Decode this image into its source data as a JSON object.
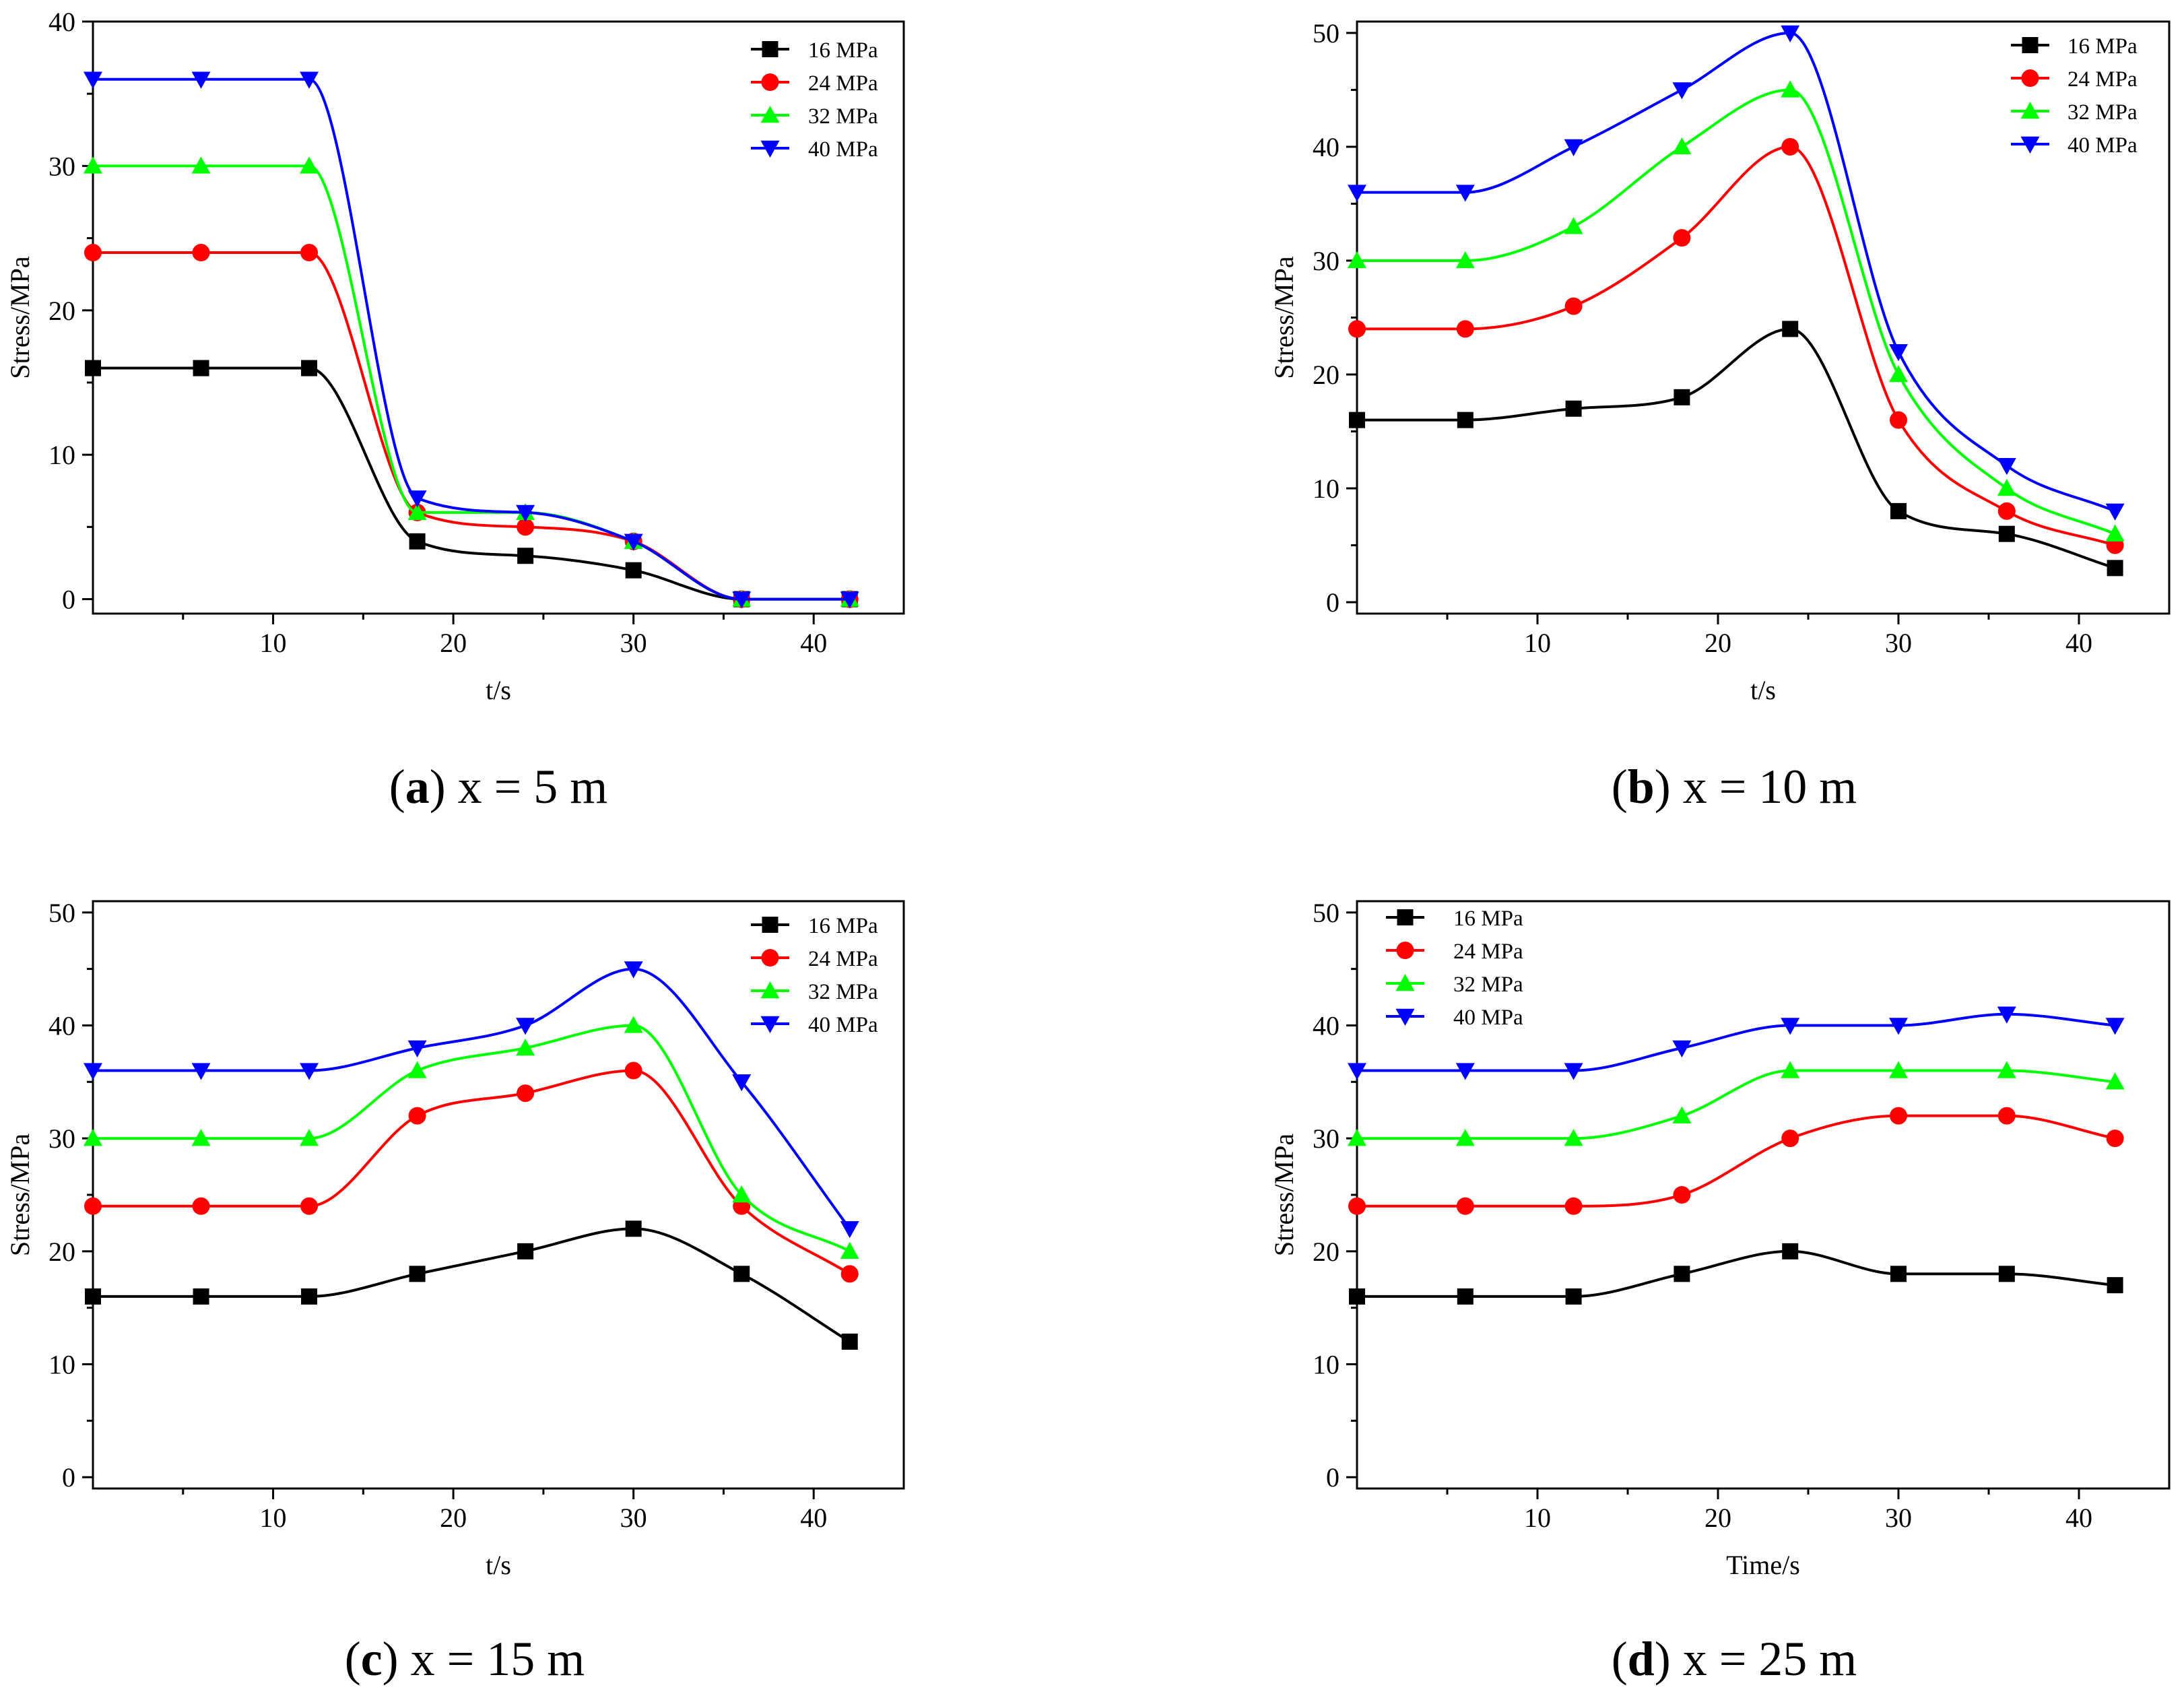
{
  "chart_data": [
    {
      "type": "line",
      "panel_letter": "a",
      "panel_condition": "x = 5 m",
      "xlabel": "t/s",
      "ylabel": "Stress/MPa",
      "xlim": [
        0,
        45
      ],
      "ylim": [
        -1,
        40
      ],
      "xticks": [
        10,
        20,
        30,
        40
      ],
      "yticks": [
        0,
        10,
        20,
        30,
        40
      ],
      "legend_position": "top-right",
      "x": [
        0,
        6,
        12,
        18,
        24,
        30,
        36,
        42
      ],
      "series": [
        {
          "name": "16 MPa",
          "color": "#000000",
          "marker": "square",
          "values": [
            16,
            16,
            16,
            4,
            3,
            2,
            0,
            0
          ]
        },
        {
          "name": "24 MPa",
          "color": "#ff0000",
          "marker": "circle",
          "values": [
            24,
            24,
            24,
            6,
            5,
            4,
            0,
            0
          ]
        },
        {
          "name": "32 MPa",
          "color": "#00ff00",
          "marker": "triangle-up",
          "values": [
            30,
            30,
            30,
            6,
            6,
            4,
            0,
            0
          ]
        },
        {
          "name": "40 MPa",
          "color": "#0000ff",
          "marker": "triangle-down",
          "values": [
            36,
            36,
            36,
            7,
            6,
            4,
            0,
            0
          ]
        }
      ]
    },
    {
      "type": "line",
      "panel_letter": "b",
      "panel_condition": "x = 10 m",
      "xlabel": "t/s",
      "ylabel": "Stress/MPa",
      "xlim": [
        0,
        45
      ],
      "ylim": [
        -1,
        51
      ],
      "xticks": [
        10,
        20,
        30,
        40
      ],
      "yticks": [
        0,
        10,
        20,
        30,
        40,
        50
      ],
      "legend_position": "top-right",
      "x": [
        0,
        6,
        12,
        18,
        24,
        30,
        36,
        42
      ],
      "series": [
        {
          "name": "16 MPa",
          "color": "#000000",
          "marker": "square",
          "values": [
            16,
            16,
            17,
            18,
            24,
            8,
            6,
            3
          ]
        },
        {
          "name": "24 MPa",
          "color": "#ff0000",
          "marker": "circle",
          "values": [
            24,
            24,
            26,
            32,
            40,
            16,
            8,
            5
          ]
        },
        {
          "name": "32 MPa",
          "color": "#00ff00",
          "marker": "triangle-up",
          "values": [
            30,
            30,
            33,
            40,
            45,
            20,
            10,
            6
          ]
        },
        {
          "name": "40 MPa",
          "color": "#0000ff",
          "marker": "triangle-down",
          "values": [
            36,
            36,
            40,
            45,
            50,
            22,
            12,
            8
          ]
        }
      ]
    },
    {
      "type": "line",
      "panel_letter": "c",
      "panel_condition": "x = 15 m",
      "xlabel": "t/s",
      "ylabel": "Stress/MPa",
      "xlim": [
        0,
        45
      ],
      "ylim": [
        -1,
        51
      ],
      "xticks": [
        10,
        20,
        30,
        40
      ],
      "yticks": [
        0,
        10,
        20,
        30,
        40,
        50
      ],
      "legend_position": "top-right",
      "x": [
        0,
        6,
        12,
        18,
        24,
        30,
        36,
        42
      ],
      "series": [
        {
          "name": "16 MPa",
          "color": "#000000",
          "marker": "square",
          "values": [
            16,
            16,
            16,
            18,
            20,
            22,
            18,
            12
          ]
        },
        {
          "name": "24 MPa",
          "color": "#ff0000",
          "marker": "circle",
          "values": [
            24,
            24,
            24,
            32,
            34,
            36,
            24,
            18
          ]
        },
        {
          "name": "32 MPa",
          "color": "#00ff00",
          "marker": "triangle-up",
          "values": [
            30,
            30,
            30,
            36,
            38,
            40,
            25,
            20
          ]
        },
        {
          "name": "40 MPa",
          "color": "#0000ff",
          "marker": "triangle-down",
          "values": [
            36,
            36,
            36,
            38,
            40,
            45,
            35,
            22
          ]
        }
      ]
    },
    {
      "type": "line",
      "panel_letter": "d",
      "panel_condition": "x = 25 m",
      "xlabel": "Time/s",
      "ylabel": "Stress/MPa",
      "xlim": [
        0,
        45
      ],
      "ylim": [
        -1,
        51
      ],
      "xticks": [
        10,
        20,
        30,
        40
      ],
      "yticks": [
        0,
        10,
        20,
        30,
        40,
        50
      ],
      "legend_position": "top-left",
      "x": [
        0,
        6,
        12,
        18,
        24,
        30,
        36,
        42
      ],
      "series": [
        {
          "name": "16 MPa",
          "color": "#000000",
          "marker": "square",
          "values": [
            16,
            16,
            16,
            18,
            20,
            18,
            18,
            17
          ]
        },
        {
          "name": "24 MPa",
          "color": "#ff0000",
          "marker": "circle",
          "values": [
            24,
            24,
            24,
            25,
            30,
            32,
            32,
            30
          ]
        },
        {
          "name": "32 MPa",
          "color": "#00ff00",
          "marker": "triangle-up",
          "values": [
            30,
            30,
            30,
            32,
            36,
            36,
            36,
            35
          ]
        },
        {
          "name": "40 MPa",
          "color": "#0000ff",
          "marker": "triangle-down",
          "values": [
            36,
            36,
            36,
            38,
            40,
            40,
            41,
            40
          ]
        }
      ]
    }
  ]
}
